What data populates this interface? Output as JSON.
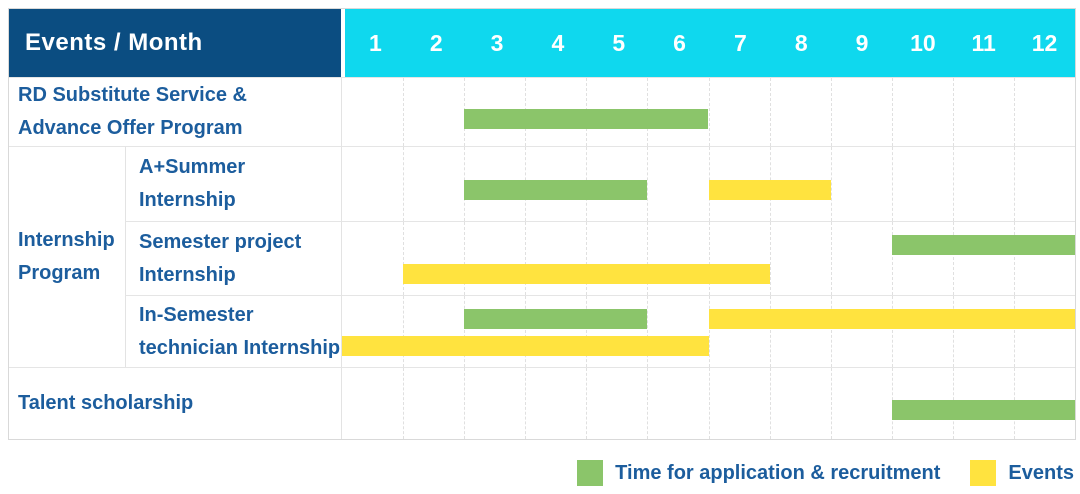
{
  "header": {
    "title": "Events / Month",
    "months": [
      "1",
      "2",
      "3",
      "4",
      "5",
      "6",
      "7",
      "8",
      "9",
      "10",
      "11",
      "12"
    ]
  },
  "group": {
    "label_lines": [
      "Internship",
      "Program"
    ]
  },
  "rows": [
    {
      "label_lines": [
        "RD Substitute Service &",
        "Advance Offer Program"
      ],
      "bars": [
        {
          "color": "green",
          "start_month": 3,
          "end_month": 6,
          "line": "center"
        }
      ]
    },
    {
      "label_lines": [
        "A+Summer",
        "Internship"
      ],
      "bars": [
        {
          "color": "green",
          "start_month": 3,
          "end_month": 5,
          "line": "center"
        },
        {
          "color": "yellow",
          "start_month": 7,
          "end_month": 8,
          "line": "center"
        }
      ]
    },
    {
      "label_lines": [
        "Semester project",
        "Internship"
      ],
      "bars": [
        {
          "color": "green",
          "start_month": 10,
          "end_month": 12,
          "line": "top"
        },
        {
          "color": "yellow",
          "start_month": 2,
          "end_month": 7,
          "line": "bottom"
        }
      ]
    },
    {
      "label_lines": [
        "In-Semester",
        "technician Internship"
      ],
      "bars": [
        {
          "color": "green",
          "start_month": 3,
          "end_month": 5,
          "line": "top"
        },
        {
          "color": "yellow",
          "start_month": 7,
          "end_month": 12,
          "line": "top"
        },
        {
          "color": "yellow",
          "start_month": 1,
          "end_month": 6,
          "line": "bottom"
        }
      ]
    },
    {
      "label_lines": [
        "Talent scholarship"
      ],
      "bars": [
        {
          "color": "green",
          "start_month": 10,
          "end_month": 12,
          "line": "center"
        }
      ]
    }
  ],
  "legend": [
    {
      "label": "Time for application & recruitment",
      "color": "#8bc56a"
    },
    {
      "label": "Events",
      "color": "#ffe33f"
    }
  ],
  "colors": {
    "green": "#8bc56a",
    "yellow": "#ffe33f",
    "header_navy": "#0b4d81",
    "month_cyan": "#0fd8ee",
    "label_blue": "#1c5d9d"
  },
  "chart_data": {
    "type": "bar",
    "subtype": "gantt-timeline",
    "title": "Events / Month",
    "x_unit": "month",
    "x_range": [
      1,
      12
    ],
    "x_ticks": [
      "1",
      "2",
      "3",
      "4",
      "5",
      "6",
      "7",
      "8",
      "9",
      "10",
      "11",
      "12"
    ],
    "grid": "vertical-dashed",
    "legend_position": "bottom-right",
    "series_legend": {
      "green": "Time for application & recruitment",
      "yellow": "Events"
    },
    "categories": [
      "RD Substitute Service & Advance Offer Program",
      "Internship Program / A+Summer Internship",
      "Internship Program / Semester project Internship",
      "Internship Program / In-Semester technician Internship",
      "Talent scholarship"
    ],
    "bars": [
      {
        "row": "RD Substitute Service & Advance Offer Program",
        "series": "Time for application & recruitment",
        "start_month": 3,
        "end_month": 6
      },
      {
        "row": "Internship Program / A+Summer Internship",
        "series": "Time for application & recruitment",
        "start_month": 3,
        "end_month": 5
      },
      {
        "row": "Internship Program / A+Summer Internship",
        "series": "Events",
        "start_month": 7,
        "end_month": 8
      },
      {
        "row": "Internship Program / Semester project Internship",
        "series": "Time for application & recruitment",
        "start_month": 10,
        "end_month": 12
      },
      {
        "row": "Internship Program / Semester project Internship",
        "series": "Events",
        "start_month": 2,
        "end_month": 7
      },
      {
        "row": "Internship Program / In-Semester technician Internship",
        "series": "Time for application & recruitment",
        "start_month": 3,
        "end_month": 5
      },
      {
        "row": "Internship Program / In-Semester technician Internship",
        "series": "Events",
        "start_month": 7,
        "end_month": 12
      },
      {
        "row": "Internship Program / In-Semester technician Internship",
        "series": "Events",
        "start_month": 1,
        "end_month": 6
      },
      {
        "row": "Talent scholarship",
        "series": "Time for application & recruitment",
        "start_month": 10,
        "end_month": 12
      }
    ]
  }
}
